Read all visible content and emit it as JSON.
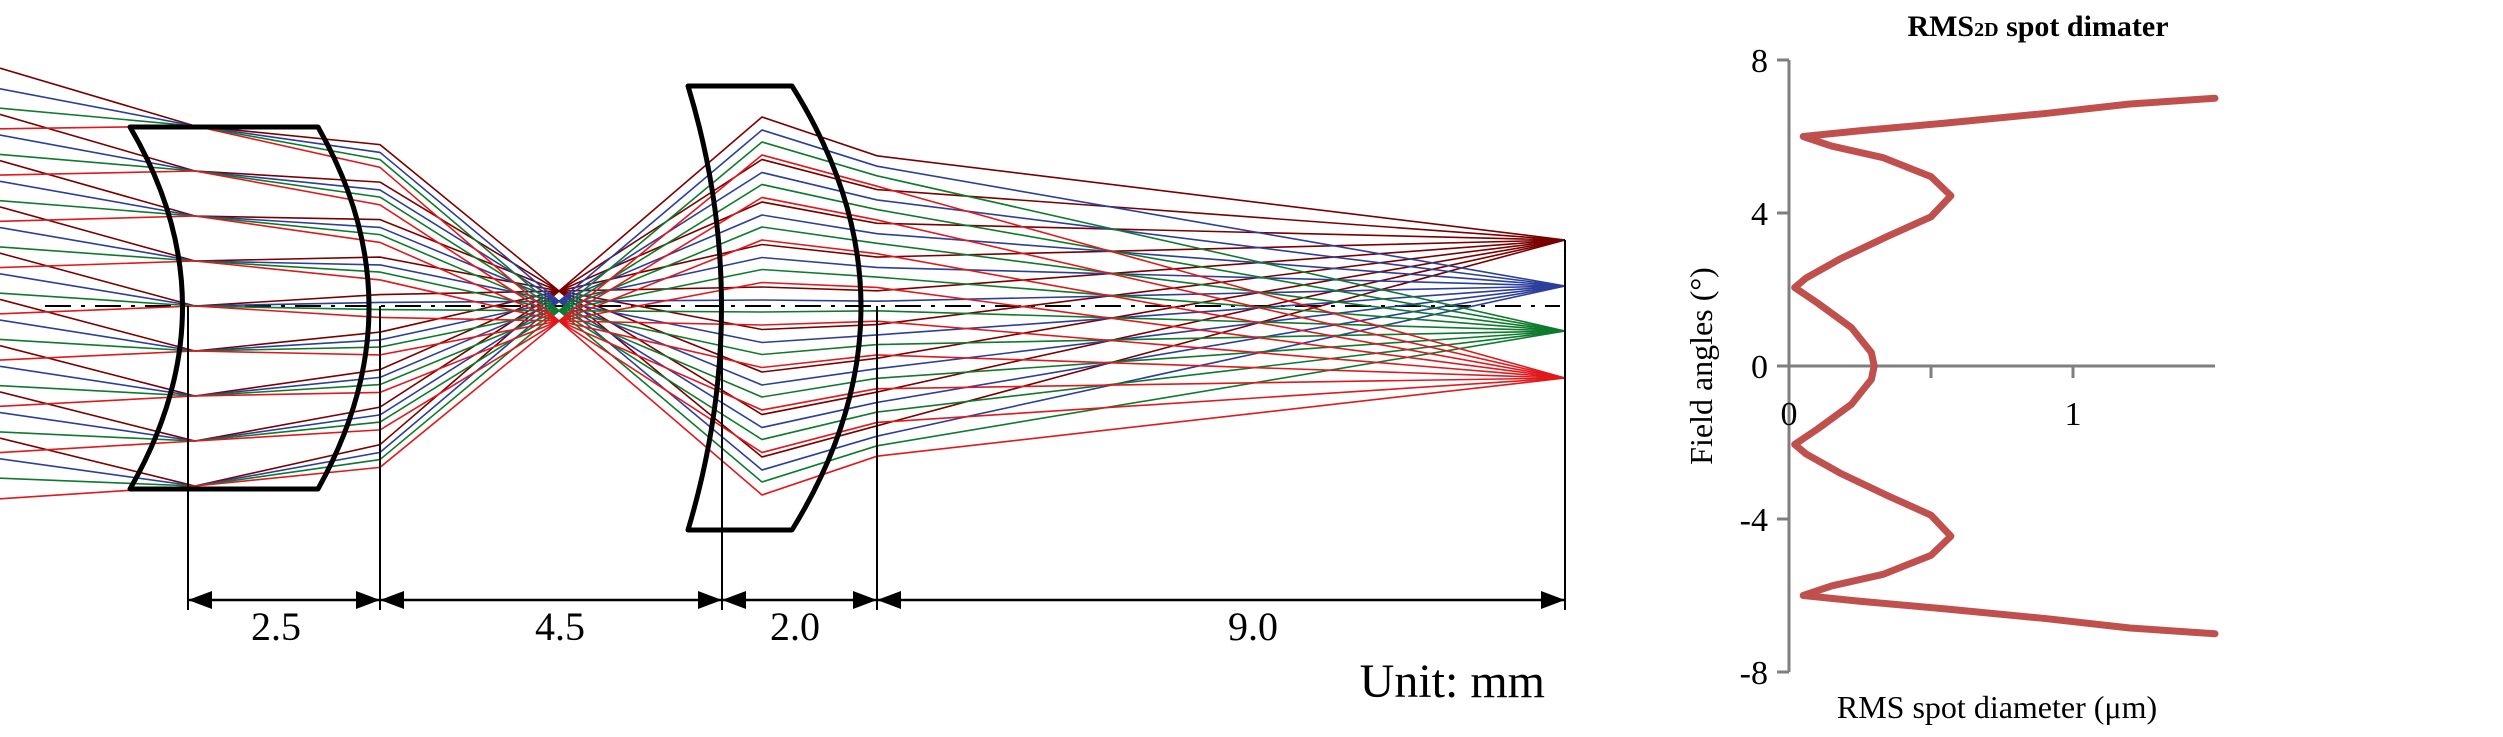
{
  "diagram": {
    "dimensions": [
      {
        "label": "2.5"
      },
      {
        "label": "4.5"
      },
      {
        "label": "2.0"
      },
      {
        "label": "9.0"
      }
    ],
    "unit_label": "Unit: mm",
    "ray_colors": {
      "dark_red": "#7a0000",
      "blue": "#2b3f9b",
      "green": "#0f7a2e",
      "red": "#e0191d"
    }
  },
  "chart_data": {
    "type": "line",
    "title": "RMS",
    "title_sub": "2D",
    "title_rest": " spot dimater",
    "xlabel": "RMS spot diameter (μm)",
    "ylabel": "Field angles (°)",
    "xlim": [
      0,
      1.5
    ],
    "ylim": [
      -8,
      8
    ],
    "x_ticks": [
      "0",
      "1"
    ],
    "y_ticks": [
      "8",
      "4",
      "0",
      "-4",
      "-8"
    ],
    "line_color": "#c0504d",
    "series": [
      {
        "points": [
          [
            1.5,
            -7.0
          ],
          [
            1.2,
            -6.85
          ],
          [
            0.9,
            -6.6
          ],
          [
            0.55,
            -6.35
          ],
          [
            0.25,
            -6.15
          ],
          [
            0.05,
            -6.0
          ],
          [
            0.15,
            -5.75
          ],
          [
            0.33,
            -5.45
          ],
          [
            0.5,
            -4.95
          ],
          [
            0.57,
            -4.45
          ],
          [
            0.5,
            -3.9
          ],
          [
            0.35,
            -3.4
          ],
          [
            0.18,
            -2.8
          ],
          [
            0.06,
            -2.3
          ],
          [
            0.02,
            -2.05
          ],
          [
            0.1,
            -1.65
          ],
          [
            0.22,
            -1.0
          ],
          [
            0.29,
            -0.35
          ],
          [
            0.3,
            0.0
          ],
          [
            0.29,
            0.35
          ],
          [
            0.22,
            1.0
          ],
          [
            0.1,
            1.65
          ],
          [
            0.02,
            2.05
          ],
          [
            0.06,
            2.3
          ],
          [
            0.18,
            2.8
          ],
          [
            0.35,
            3.4
          ],
          [
            0.5,
            3.9
          ],
          [
            0.57,
            4.45
          ],
          [
            0.5,
            4.95
          ],
          [
            0.33,
            5.45
          ],
          [
            0.15,
            5.75
          ],
          [
            0.05,
            6.0
          ],
          [
            0.25,
            6.15
          ],
          [
            0.55,
            6.35
          ],
          [
            0.9,
            6.6
          ],
          [
            1.2,
            6.85
          ],
          [
            1.5,
            7.0
          ]
        ]
      }
    ]
  }
}
